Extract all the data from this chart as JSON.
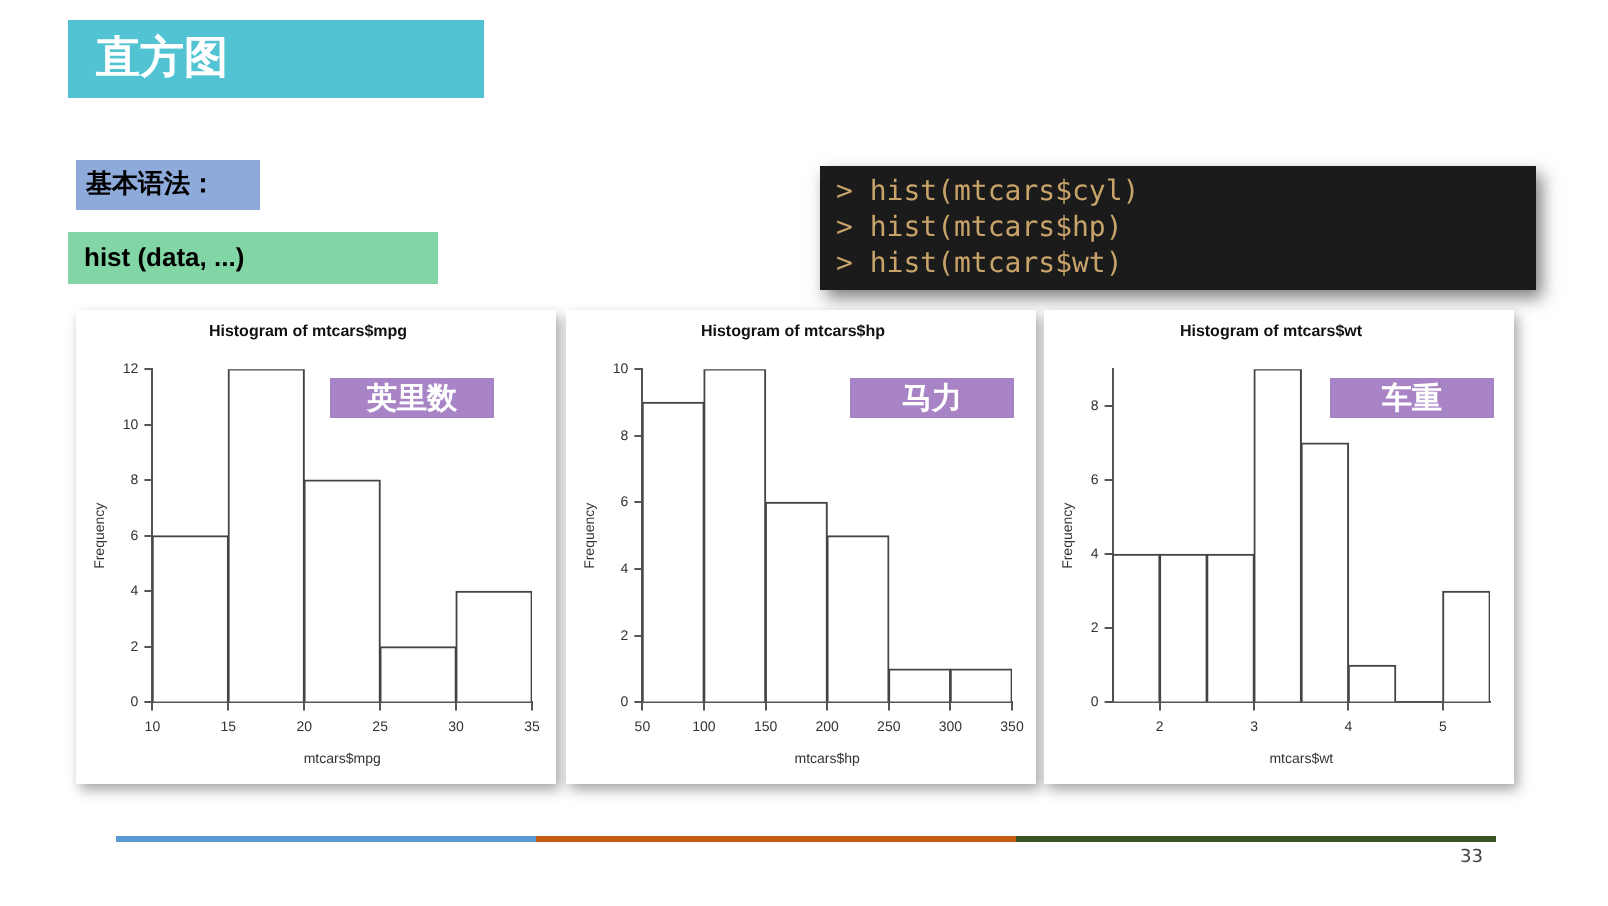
{
  "chart_data": [
    {
      "type": "other",
      "title": "直方图",
      "annotations": [
        "基本语法：",
        "hist (data, ...)",
        "> hist(mtcars$cyl)",
        "> hist(mtcars$hp)",
        "> hist(mtcars$wt)",
        "33"
      ]
    },
    {
      "type": "histogram",
      "title": "Histogram of mtcars$mpg",
      "xlabel": "mtcars$mpg",
      "ylabel": "Frequency",
      "bins": [
        10,
        15,
        20,
        25,
        30,
        35
      ],
      "values": [
        6,
        12,
        8,
        2,
        4
      ],
      "color": "#ffffff",
      "xlim": [
        10,
        35
      ],
      "xticks": [
        10,
        15,
        20,
        25,
        30,
        35
      ],
      "ylim": [
        0,
        12
      ],
      "yticks": [
        0,
        2,
        4,
        6,
        8,
        10,
        12
      ],
      "annotations": [
        "英里数"
      ]
    },
    {
      "type": "histogram",
      "title": "Histogram of mtcars$hp",
      "xlabel": "mtcars$hp",
      "ylabel": "Frequency",
      "bins": [
        50,
        100,
        150,
        200,
        250,
        300,
        350
      ],
      "values": [
        9,
        10,
        6,
        5,
        1,
        1
      ],
      "color": "#ffffff",
      "xlim": [
        50,
        350
      ],
      "xticks": [
        50,
        100,
        150,
        200,
        250,
        300,
        350
      ],
      "ylim": [
        0,
        10
      ],
      "yticks": [
        0,
        2,
        4,
        6,
        8,
        10
      ],
      "annotations": [
        "马力"
      ]
    },
    {
      "type": "histogram",
      "title": "Histogram of mtcars$wt",
      "xlabel": "mtcars$wt",
      "ylabel": "Frequency",
      "bins": [
        1.5,
        2,
        2.5,
        3,
        3.5,
        4,
        4.5,
        5,
        5.5
      ],
      "values": [
        4,
        4,
        4,
        9,
        7,
        1,
        0,
        3
      ],
      "color": "#ffffff",
      "xlim": [
        1.5,
        5.5
      ],
      "xticks": [
        2,
        3,
        4,
        5
      ],
      "ylim": [
        0,
        9
      ],
      "yticks": [
        0,
        2,
        4,
        6,
        8
      ],
      "annotations": [
        "车重"
      ]
    }
  ]
}
